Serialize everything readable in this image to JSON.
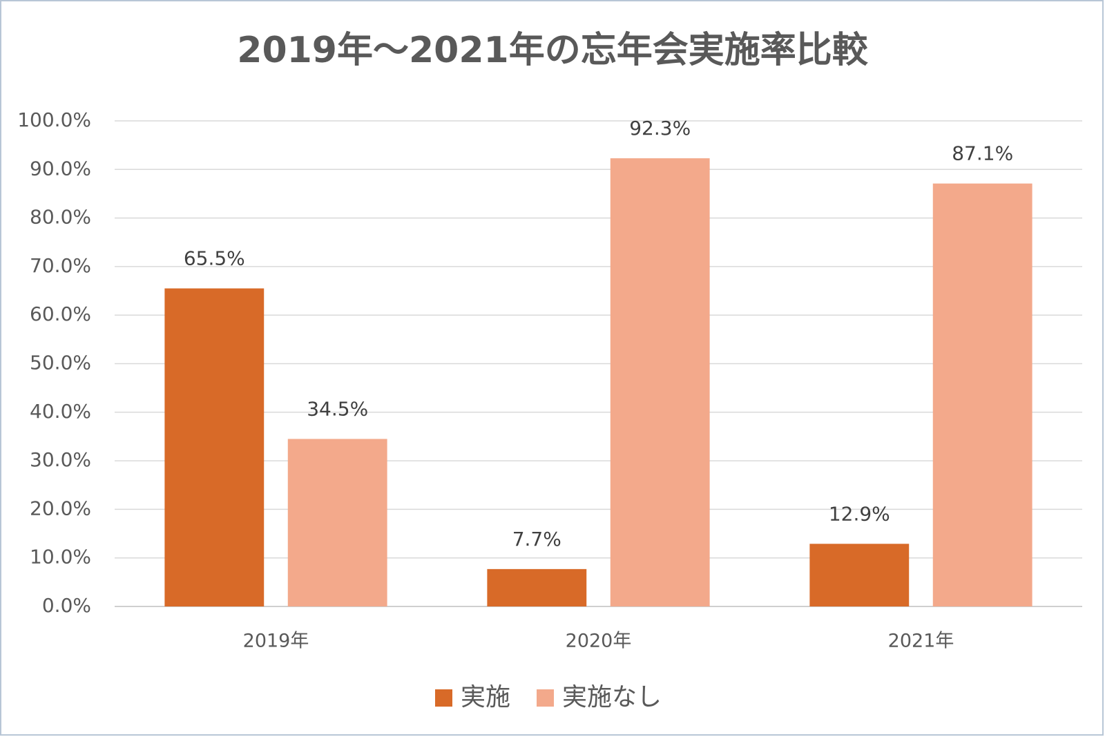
{
  "chart_data": {
    "type": "bar",
    "title": "2019年～2021年の忘年会実施率比較",
    "categories": [
      "2019年",
      "2020年",
      "2021年"
    ],
    "series": [
      {
        "name": "実施",
        "color": "#d86a28",
        "values": [
          65.5,
          7.7,
          12.9
        ],
        "value_labels": [
          "65.5%",
          "7.7%",
          "12.9%"
        ]
      },
      {
        "name": "実施なし",
        "color": "#f3a98b",
        "values": [
          34.5,
          92.3,
          87.1
        ],
        "value_labels": [
          "34.5%",
          "92.3%",
          "87.1%"
        ]
      }
    ],
    "ylim": [
      0,
      100
    ],
    "yticks": [
      {
        "value": 0,
        "label": "0.0%"
      },
      {
        "value": 10,
        "label": "10.0%"
      },
      {
        "value": 20,
        "label": "20.0%"
      },
      {
        "value": 30,
        "label": "30.0%"
      },
      {
        "value": 40,
        "label": "40.0%"
      },
      {
        "value": 50,
        "label": "50.0%"
      },
      {
        "value": 60,
        "label": "60.0%"
      },
      {
        "value": 70,
        "label": "70.0%"
      },
      {
        "value": 80,
        "label": "80.0%"
      },
      {
        "value": 90,
        "label": "90.0%"
      },
      {
        "value": 100,
        "label": "100.0%"
      }
    ],
    "grid": true,
    "legend": "bottom"
  }
}
